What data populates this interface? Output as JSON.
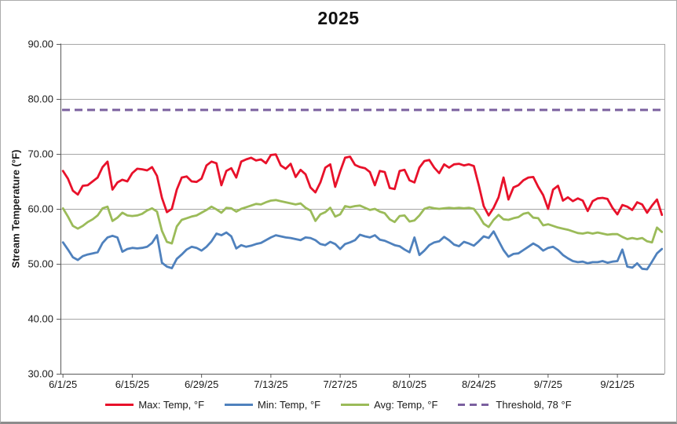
{
  "chart_data": {
    "type": "line",
    "title": "2025",
    "ylabel": "Stream Temperature (°F)",
    "ylim": [
      30,
      90
    ],
    "ytick_step": 10,
    "ytick_labels": [
      "90.00",
      "80.00",
      "70.00",
      "60.00",
      "50.00",
      "40.00",
      "30.00"
    ],
    "xtick_labels": [
      "6/1/25",
      "6/15/25",
      "6/29/25",
      "7/13/25",
      "7/27/25",
      "8/10/25",
      "8/24/25",
      "9/7/25",
      "9/21/25"
    ],
    "xtick_interval_days": 14,
    "grid": true,
    "legend_position": "bottom",
    "series": [
      {
        "name": "max",
        "label": "Max: Temp, °F",
        "color": "#E8112A",
        "values": [
          66.9,
          65.5,
          63.3,
          62.6,
          64.2,
          64.3,
          65.0,
          65.7,
          67.6,
          68.6,
          63.5,
          64.8,
          65.3,
          65.0,
          66.5,
          67.3,
          67.2,
          67.0,
          67.6,
          66.0,
          62.0,
          59.4,
          60.0,
          63.5,
          65.7,
          65.9,
          65.0,
          64.9,
          65.5,
          67.9,
          68.6,
          68.3,
          64.3,
          66.9,
          67.4,
          65.7,
          68.6,
          69.0,
          69.3,
          68.8,
          69.0,
          68.3,
          69.8,
          69.9,
          67.9,
          67.3,
          68.2,
          65.8,
          67.1,
          66.3,
          63.9,
          63.0,
          64.8,
          67.5,
          68.1,
          64.0,
          66.8,
          69.3,
          69.5,
          68.0,
          67.6,
          67.4,
          66.7,
          64.3,
          66.9,
          66.7,
          63.8,
          63.6,
          66.9,
          67.1,
          65.2,
          64.8,
          67.5,
          68.7,
          68.9,
          67.5,
          66.5,
          68.1,
          67.5,
          68.1,
          68.2,
          67.9,
          68.1,
          67.8,
          64.3,
          60.5,
          58.8,
          60.2,
          62.1,
          65.7,
          61.7,
          63.9,
          64.3,
          65.2,
          65.7,
          65.8,
          64.0,
          62.5,
          60.0,
          63.5,
          64.2,
          61.5,
          62.1,
          61.4,
          61.9,
          61.5,
          59.6,
          61.4,
          61.9,
          62.0,
          61.8,
          60.2,
          59.0,
          60.7,
          60.4,
          59.8,
          61.2,
          60.8,
          59.3,
          60.6,
          61.7,
          58.9
        ]
      },
      {
        "name": "min",
        "label": "Min: Temp, °F",
        "color": "#4F81BD",
        "values": [
          53.9,
          52.6,
          51.2,
          50.7,
          51.4,
          51.7,
          51.9,
          52.1,
          53.8,
          54.8,
          55.1,
          54.8,
          52.2,
          52.7,
          52.9,
          52.8,
          52.9,
          53.1,
          53.8,
          55.2,
          50.2,
          49.5,
          49.2,
          50.9,
          51.7,
          52.6,
          53.1,
          52.9,
          52.4,
          53.1,
          54.1,
          55.5,
          55.2,
          55.7,
          55.0,
          52.8,
          53.4,
          53.1,
          53.3,
          53.6,
          53.8,
          54.3,
          54.8,
          55.2,
          55.0,
          54.8,
          54.7,
          54.5,
          54.3,
          54.8,
          54.7,
          54.3,
          53.6,
          53.4,
          54.0,
          53.6,
          52.7,
          53.6,
          53.9,
          54.3,
          55.3,
          55.0,
          54.8,
          55.2,
          54.4,
          54.2,
          53.8,
          53.4,
          53.2,
          52.6,
          52.1,
          54.8,
          51.6,
          52.4,
          53.4,
          53.9,
          54.1,
          54.9,
          54.3,
          53.5,
          53.2,
          54.0,
          53.7,
          53.3,
          54.1,
          55.0,
          54.7,
          55.9,
          54.2,
          52.5,
          51.3,
          51.8,
          51.9,
          52.5,
          53.1,
          53.7,
          53.2,
          52.4,
          52.9,
          53.1,
          52.5,
          51.6,
          51.0,
          50.5,
          50.3,
          50.4,
          50.1,
          50.3,
          50.3,
          50.5,
          50.2,
          50.4,
          50.5,
          52.6,
          49.5,
          49.3,
          50.1,
          49.1,
          49.0,
          50.4,
          51.9,
          52.7
        ]
      },
      {
        "name": "avg",
        "label": "Avg: Temp, °F",
        "color": "#9BBB59",
        "values": [
          60.1,
          58.6,
          56.9,
          56.4,
          56.9,
          57.6,
          58.1,
          58.8,
          60.1,
          60.4,
          57.8,
          58.4,
          59.3,
          58.8,
          58.7,
          58.8,
          59.1,
          59.7,
          60.1,
          59.5,
          56.0,
          54.0,
          53.7,
          56.8,
          58.0,
          58.3,
          58.6,
          58.8,
          59.3,
          59.8,
          60.4,
          59.9,
          59.3,
          60.2,
          60.1,
          59.5,
          60.0,
          60.3,
          60.6,
          60.9,
          60.8,
          61.2,
          61.5,
          61.6,
          61.4,
          61.2,
          61.0,
          60.8,
          61.0,
          60.2,
          59.7,
          57.8,
          59.0,
          59.4,
          60.2,
          58.6,
          59.0,
          60.5,
          60.3,
          60.5,
          60.6,
          60.2,
          59.8,
          60.0,
          59.5,
          59.2,
          58.1,
          57.6,
          58.7,
          58.8,
          57.7,
          57.9,
          58.8,
          60.0,
          60.3,
          60.1,
          60.0,
          60.1,
          60.2,
          60.1,
          60.2,
          60.1,
          60.2,
          60.0,
          58.8,
          57.3,
          56.7,
          58.0,
          58.9,
          58.1,
          58.0,
          58.3,
          58.5,
          59.1,
          59.3,
          58.4,
          58.3,
          57.0,
          57.2,
          56.9,
          56.6,
          56.4,
          56.2,
          55.9,
          55.6,
          55.5,
          55.7,
          55.5,
          55.7,
          55.5,
          55.3,
          55.4,
          55.4,
          54.9,
          54.5,
          54.7,
          54.5,
          54.7,
          54.1,
          53.9,
          56.6,
          55.8
        ]
      }
    ],
    "threshold": {
      "label": "Threshold, 78 °F",
      "value": 78,
      "color": "#7B609F",
      "style": "dashed"
    },
    "axis_color": "#595959",
    "gridline_color": "#A6A6A6",
    "tick_label_color": "#1a1a1a"
  }
}
